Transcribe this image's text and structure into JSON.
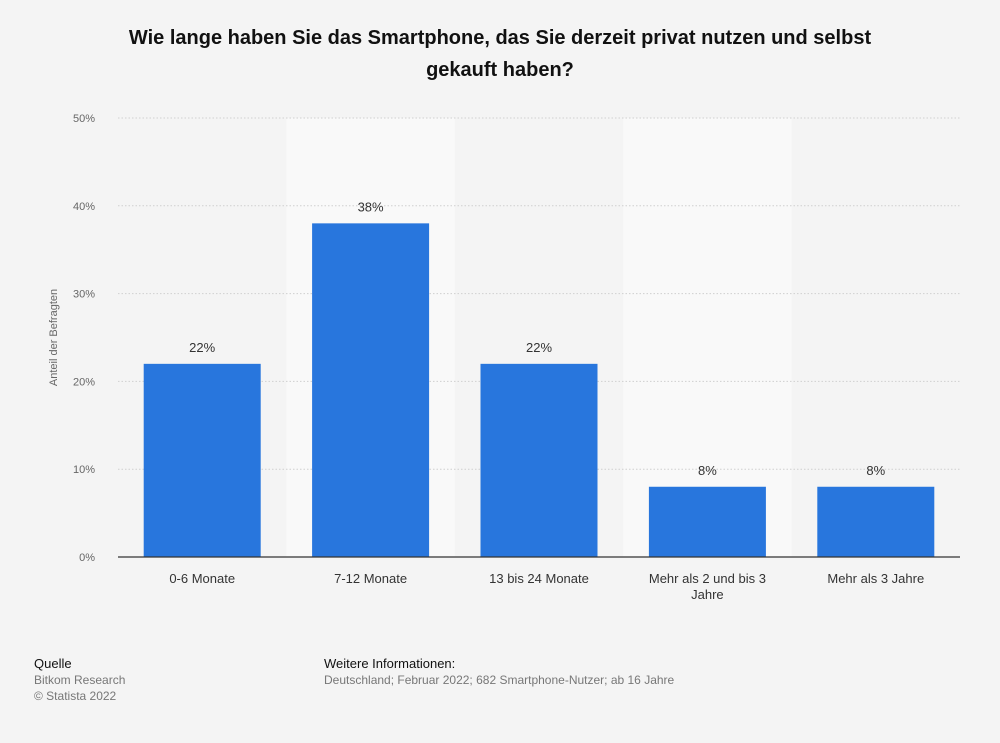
{
  "title": {
    "line1": "Wie lange haben Sie das Smartphone, das Sie derzeit privat nutzen und selbst",
    "line2": "gekauft haben?"
  },
  "chart_data": {
    "type": "bar",
    "title": "Wie lange haben Sie das Smartphone, das Sie derzeit privat nutzen und selbst gekauft haben?",
    "categories": [
      "0-6 Monate",
      "7-12 Monate",
      "13 bis 24 Monate",
      "Mehr als 2 und bis 3 Jahre",
      "Mehr als 3 Jahre"
    ],
    "category_lines": [
      [
        "0-6 Monate"
      ],
      [
        "7-12 Monate"
      ],
      [
        "13 bis 24 Monate"
      ],
      [
        "Mehr als 2 und bis 3",
        "Jahre"
      ],
      [
        "Mehr als 3 Jahre"
      ]
    ],
    "values": [
      22,
      38,
      22,
      8,
      8
    ],
    "value_labels": [
      "22%",
      "38%",
      "22%",
      "8%",
      "8%"
    ],
    "xlabel": "",
    "ylabel": "Anteil der Befragten",
    "ylim": [
      0,
      50
    ],
    "yticks": [
      0,
      10,
      20,
      30,
      40,
      50
    ],
    "ytick_labels": [
      "0%",
      "10%",
      "20%",
      "30%",
      "40%",
      "50%"
    ],
    "bar_color": "#2876dd",
    "grid": true
  },
  "footer": {
    "source_heading": "Quelle",
    "source_name": "Bitkom Research",
    "copyright": "© Statista 2022",
    "info_heading": "Weitere Informationen:",
    "info_text": "Deutschland; Februar 2022; 682 Smartphone-Nutzer; ab 16 Jahre"
  }
}
